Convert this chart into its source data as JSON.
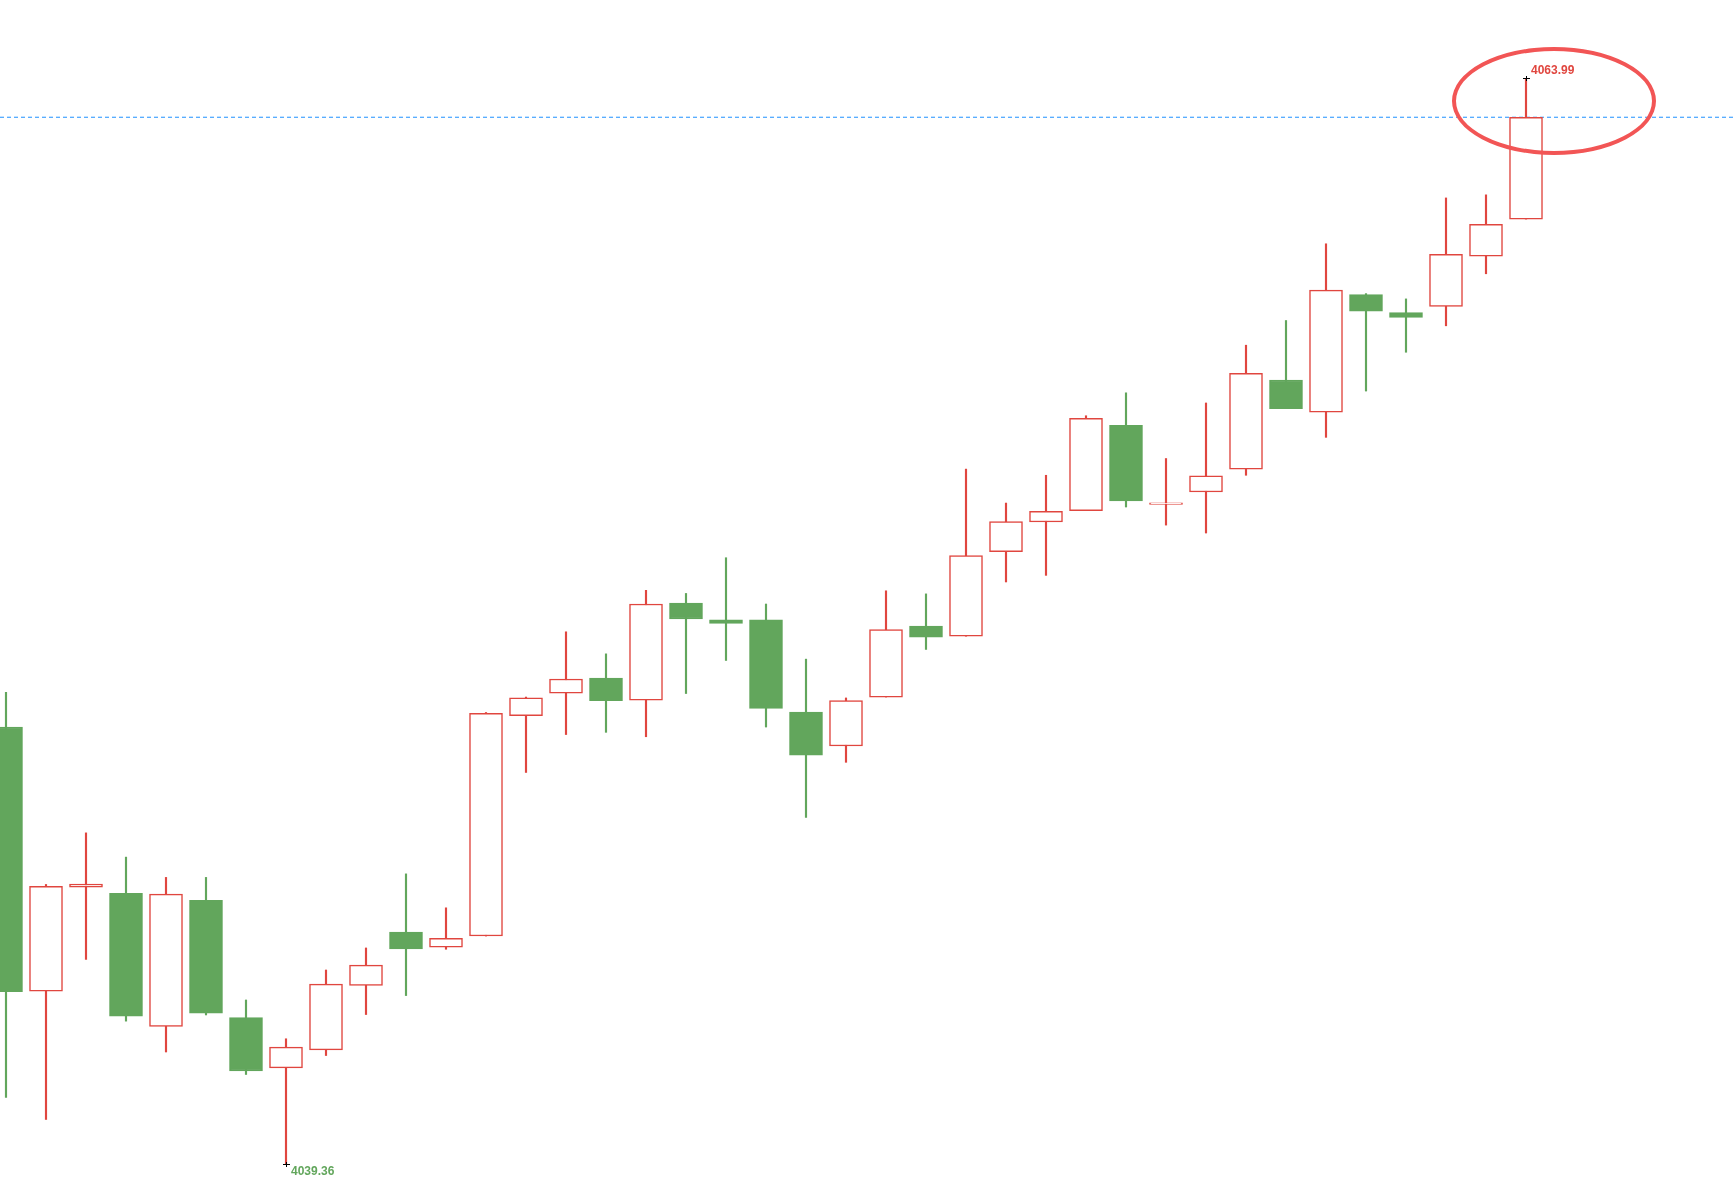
{
  "chart_data": {
    "type": "candlestick",
    "categories": [
      null,
      null,
      null,
      null,
      null,
      null,
      null,
      null,
      null,
      null,
      null,
      null,
      null,
      null,
      null,
      null,
      null,
      null,
      null,
      null,
      null,
      null,
      null,
      null,
      null,
      null,
      null,
      null,
      null,
      null,
      null,
      null,
      null,
      null,
      null,
      null,
      null,
      null,
      null
    ],
    "ohlc": [
      [
        4049.27,
        4050.06,
        4040.87,
        4043.27
      ],
      [
        4043.28,
        4045.7,
        4040.37,
        4045.66
      ],
      [
        4045.64,
        4046.87,
        4044.0,
        4045.71
      ],
      [
        4045.5,
        4046.32,
        4042.6,
        4042.71
      ],
      [
        4042.48,
        4045.86,
        4041.9,
        4045.48
      ],
      [
        4045.34,
        4045.86,
        4042.74,
        4042.78
      ],
      [
        4042.68,
        4043.08,
        4041.39,
        4041.47
      ],
      [
        4041.54,
        4042.2,
        4039.36,
        4042.01
      ],
      [
        4041.95,
        4043.76,
        4041.82,
        4043.44
      ],
      [
        4043.41,
        4044.26,
        4042.75,
        4043.87
      ],
      [
        4044.62,
        4045.94,
        4043.18,
        4044.24
      ],
      [
        4044.28,
        4045.17,
        4044.23,
        4044.48
      ],
      [
        4044.53,
        4049.6,
        4044.53,
        4049.58
      ],
      [
        4049.53,
        4049.95,
        4048.24,
        4049.93
      ],
      [
        4050.04,
        4051.43,
        4049.1,
        4050.36
      ],
      [
        4050.38,
        4050.93,
        4049.15,
        4049.87
      ],
      [
        4049.88,
        4052.37,
        4049.05,
        4052.06
      ],
      [
        4052.08,
        4052.3,
        4050.03,
        4051.72
      ],
      [
        4051.7,
        4053.11,
        4050.78,
        4051.62
      ],
      [
        4051.7,
        4052.06,
        4049.27,
        4049.69
      ],
      [
        4049.61,
        4050.81,
        4047.22,
        4048.63
      ],
      [
        4048.84,
        4049.93,
        4048.47,
        4049.87
      ],
      [
        4049.95,
        4052.36,
        4049.95,
        4051.48
      ],
      [
        4051.56,
        4052.29,
        4051.03,
        4051.31
      ],
      [
        4051.33,
        4055.12,
        4051.33,
        4053.16
      ],
      [
        4053.25,
        4054.35,
        4052.56,
        4053.93
      ],
      [
        4053.92,
        4054.98,
        4052.71,
        4054.16
      ],
      [
        4054.18,
        4056.33,
        4054.18,
        4056.27
      ],
      [
        4056.11,
        4056.85,
        4054.26,
        4054.4
      ],
      [
        4054.32,
        4055.36,
        4053.85,
        4054.34
      ],
      [
        4054.6,
        4056.62,
        4053.67,
        4054.97
      ],
      [
        4055.12,
        4057.93,
        4054.98,
        4057.29
      ],
      [
        4057.14,
        4058.49,
        4056.49,
        4056.49
      ],
      [
        4056.41,
        4060.23,
        4055.84,
        4059.18
      ],
      [
        4059.08,
        4059.1,
        4056.89,
        4058.7
      ],
      [
        4058.67,
        4058.98,
        4057.77,
        4058.56
      ],
      [
        4058.81,
        4061.27,
        4058.37,
        4059.99
      ],
      [
        4059.95,
        4061.34,
        4059.55,
        4060.67
      ],
      [
        4060.79,
        4063.99,
        4060.79,
        4063.1
      ]
    ],
    "colors": [
      "#62a65c",
      "#e0463f",
      "#e0463f",
      "#62a65c",
      "#e0463f",
      "#62a65c",
      "#62a65c",
      "#e0463f",
      "#e0463f",
      "#e0463f",
      "#62a65c",
      "#e0463f",
      "#e0463f",
      "#e0463f",
      "#e0463f",
      "#62a65c",
      "#e0463f",
      "#62a65c",
      "#62a65c",
      "#62a65c",
      "#62a65c",
      "#e0463f",
      "#e0463f",
      "#62a65c",
      "#e0463f",
      "#e0463f",
      "#e0463f",
      "#e0463f",
      "#62a65c",
      "#e0463f",
      "#e0463f",
      "#e0463f",
      "#62a65c",
      "#e0463f",
      "#62a65c",
      "#62a65c",
      "#e0463f",
      "#e0463f",
      "#e0463f"
    ],
    "annotations": [
      "4063.99",
      "4039.36"
    ],
    "ref_lines": [
      {
        "axis": "y",
        "value": 4063.1,
        "color": "#1e90ff",
        "line_style": "dashed"
      }
    ]
  }
}
